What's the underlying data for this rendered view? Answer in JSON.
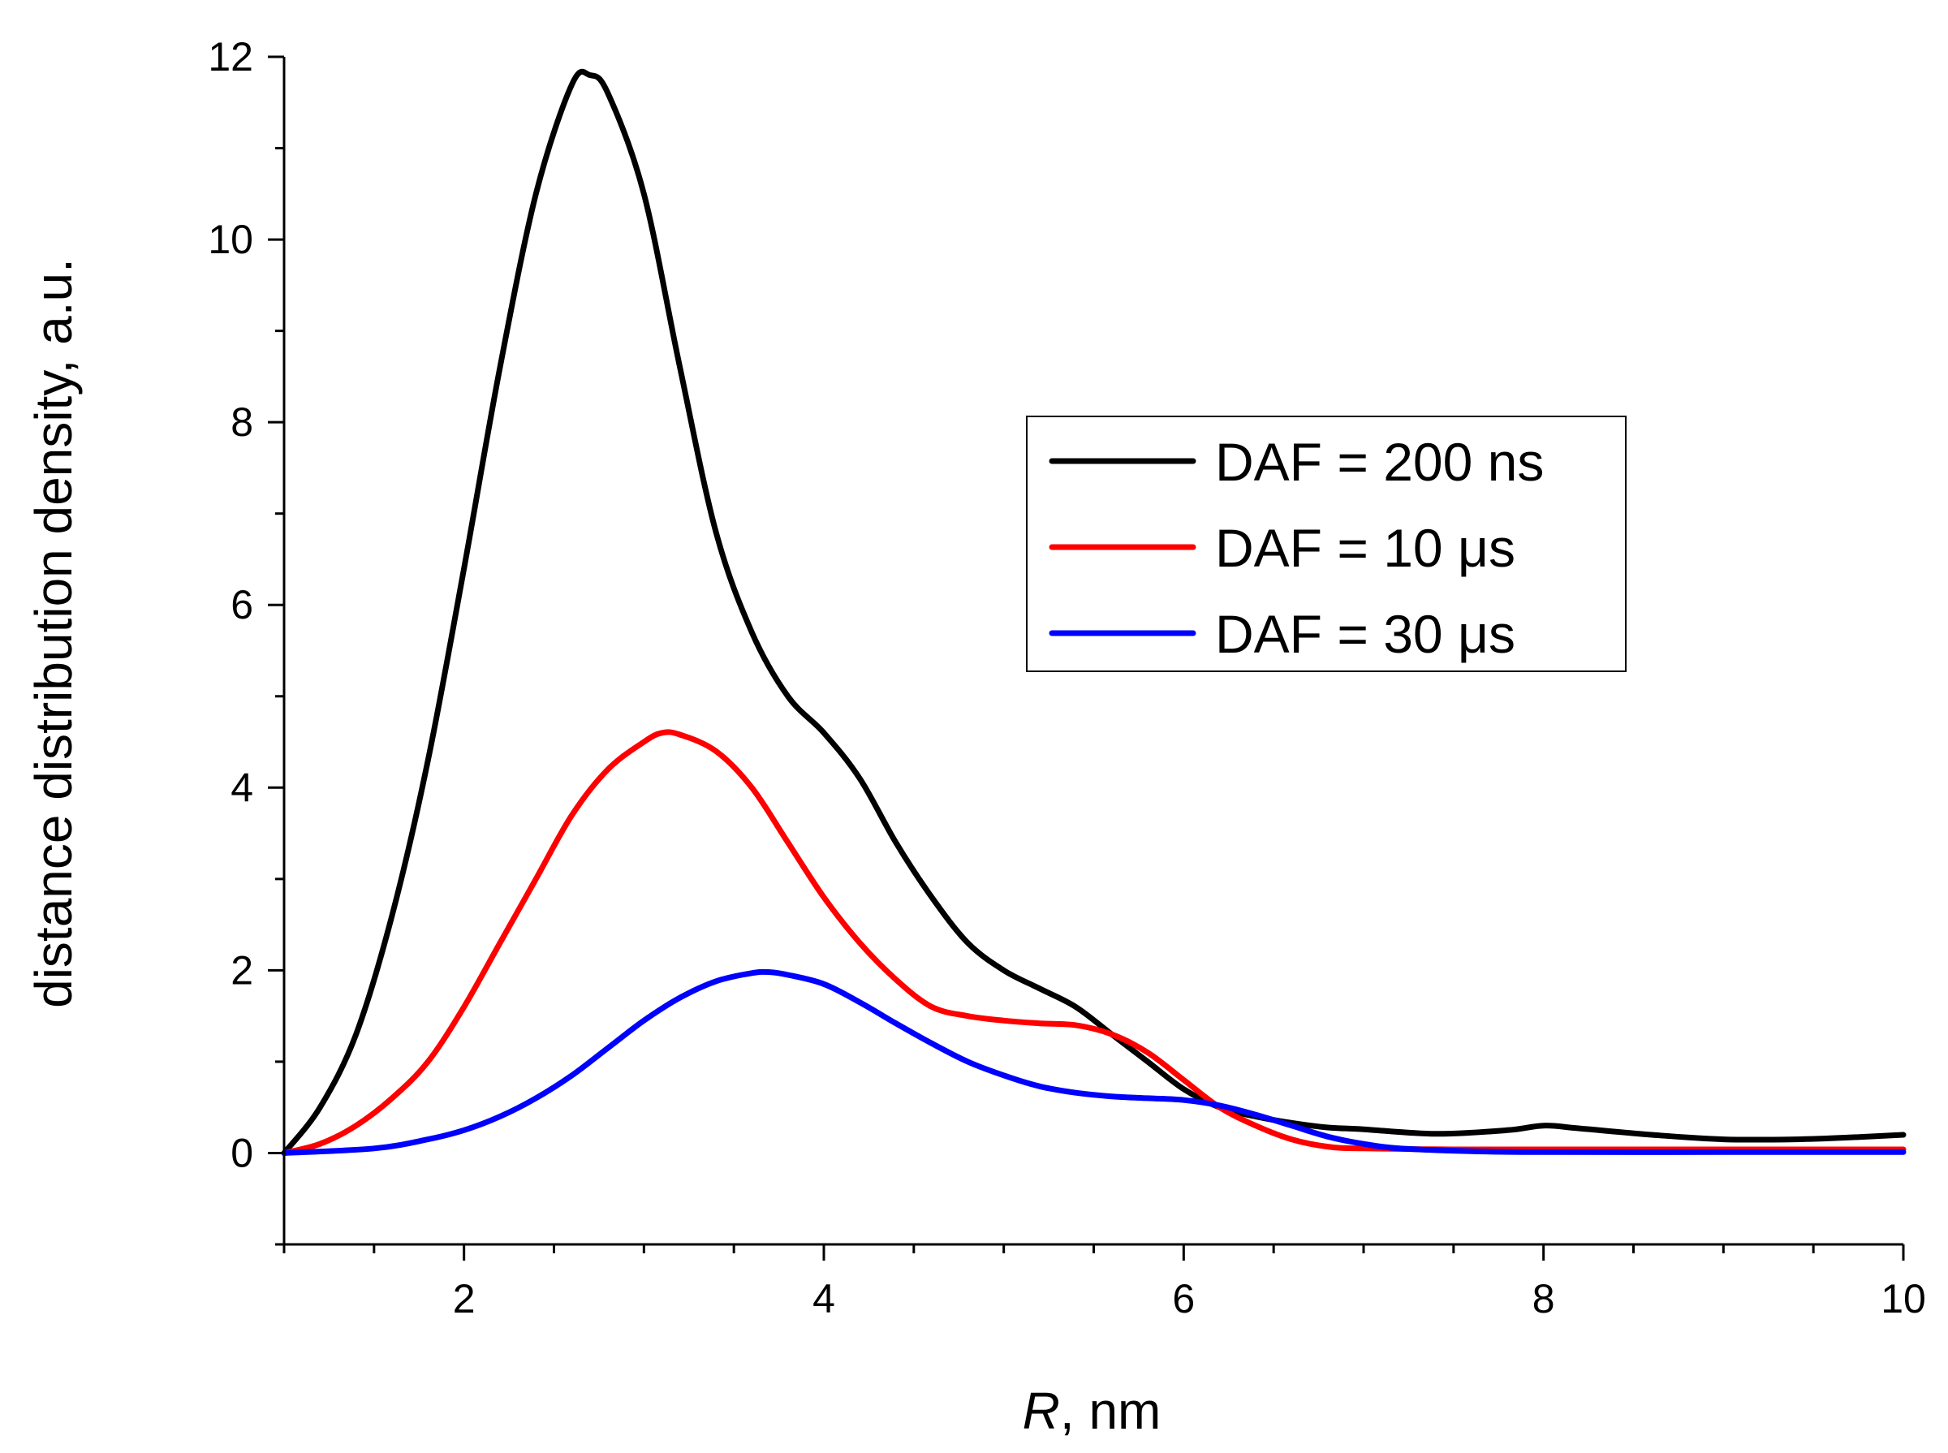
{
  "chart_data": {
    "type": "line",
    "title": "",
    "xlabel_italic": "R",
    "xlabel_rest": ", nm",
    "ylabel": "distance distribution density, a.u.",
    "xlim": [
      1,
      10
    ],
    "ylim": [
      -1,
      12
    ],
    "xticks": [
      2,
      4,
      6,
      8,
      10
    ],
    "yticks": [
      0,
      2,
      4,
      6,
      8,
      10,
      12
    ],
    "xminor": [
      1,
      1.5,
      2.5,
      3,
      3.5,
      4.5,
      5,
      5.5,
      6.5,
      7,
      7.5,
      8.5,
      9,
      9.5
    ],
    "yminor": [
      -1,
      1,
      3,
      5,
      7,
      9,
      11
    ],
    "grid": false,
    "legend_position": "center-right",
    "series": [
      {
        "name": "DAF = 200 ns",
        "color": "#000000",
        "points": [
          [
            1.0,
            0.0
          ],
          [
            1.2,
            0.5
          ],
          [
            1.4,
            1.3
          ],
          [
            1.6,
            2.6
          ],
          [
            1.8,
            4.3
          ],
          [
            2.0,
            6.4
          ],
          [
            2.2,
            8.6
          ],
          [
            2.4,
            10.5
          ],
          [
            2.6,
            11.7
          ],
          [
            2.7,
            11.8
          ],
          [
            2.8,
            11.6
          ],
          [
            3.0,
            10.5
          ],
          [
            3.2,
            8.6
          ],
          [
            3.4,
            6.8
          ],
          [
            3.6,
            5.7
          ],
          [
            3.8,
            5.0
          ],
          [
            4.0,
            4.6
          ],
          [
            4.2,
            4.1
          ],
          [
            4.4,
            3.4
          ],
          [
            4.6,
            2.8
          ],
          [
            4.8,
            2.3
          ],
          [
            5.0,
            2.0
          ],
          [
            5.2,
            1.8
          ],
          [
            5.4,
            1.6
          ],
          [
            5.6,
            1.3
          ],
          [
            5.8,
            1.0
          ],
          [
            6.0,
            0.7
          ],
          [
            6.2,
            0.5
          ],
          [
            6.4,
            0.4
          ],
          [
            6.6,
            0.33
          ],
          [
            6.8,
            0.28
          ],
          [
            7.0,
            0.26
          ],
          [
            7.4,
            0.21
          ],
          [
            7.8,
            0.25
          ],
          [
            8.0,
            0.3
          ],
          [
            8.2,
            0.27
          ],
          [
            8.6,
            0.2
          ],
          [
            9.0,
            0.15
          ],
          [
            9.4,
            0.15
          ],
          [
            9.7,
            0.17
          ],
          [
            10.0,
            0.2
          ]
        ]
      },
      {
        "name": "DAF = 10 μs",
        "color": "#ff0000",
        "points": [
          [
            1.0,
            0.0
          ],
          [
            1.2,
            0.1
          ],
          [
            1.4,
            0.3
          ],
          [
            1.6,
            0.6
          ],
          [
            1.8,
            1.0
          ],
          [
            2.0,
            1.6
          ],
          [
            2.2,
            2.3
          ],
          [
            2.4,
            3.0
          ],
          [
            2.6,
            3.7
          ],
          [
            2.8,
            4.2
          ],
          [
            3.0,
            4.5
          ],
          [
            3.1,
            4.6
          ],
          [
            3.2,
            4.58
          ],
          [
            3.4,
            4.4
          ],
          [
            3.6,
            4.0
          ],
          [
            3.8,
            3.4
          ],
          [
            4.0,
            2.8
          ],
          [
            4.2,
            2.3
          ],
          [
            4.4,
            1.9
          ],
          [
            4.6,
            1.6
          ],
          [
            4.8,
            1.5
          ],
          [
            5.0,
            1.45
          ],
          [
            5.2,
            1.42
          ],
          [
            5.4,
            1.4
          ],
          [
            5.6,
            1.3
          ],
          [
            5.8,
            1.1
          ],
          [
            6.0,
            0.8
          ],
          [
            6.2,
            0.5
          ],
          [
            6.4,
            0.3
          ],
          [
            6.6,
            0.15
          ],
          [
            6.8,
            0.07
          ],
          [
            7.0,
            0.05
          ],
          [
            7.5,
            0.04
          ],
          [
            8.0,
            0.04
          ],
          [
            9.0,
            0.04
          ],
          [
            10.0,
            0.04
          ]
        ]
      },
      {
        "name": "DAF = 30 μs",
        "color": "#0000ff",
        "points": [
          [
            1.0,
            0.0
          ],
          [
            1.5,
            0.05
          ],
          [
            1.8,
            0.15
          ],
          [
            2.0,
            0.25
          ],
          [
            2.2,
            0.4
          ],
          [
            2.4,
            0.6
          ],
          [
            2.6,
            0.85
          ],
          [
            2.8,
            1.15
          ],
          [
            3.0,
            1.45
          ],
          [
            3.2,
            1.7
          ],
          [
            3.4,
            1.88
          ],
          [
            3.6,
            1.97
          ],
          [
            3.7,
            1.98
          ],
          [
            3.8,
            1.95
          ],
          [
            4.0,
            1.85
          ],
          [
            4.2,
            1.65
          ],
          [
            4.4,
            1.42
          ],
          [
            4.6,
            1.2
          ],
          [
            4.8,
            1.0
          ],
          [
            5.0,
            0.85
          ],
          [
            5.2,
            0.73
          ],
          [
            5.4,
            0.66
          ],
          [
            5.6,
            0.62
          ],
          [
            5.8,
            0.6
          ],
          [
            6.0,
            0.58
          ],
          [
            6.2,
            0.52
          ],
          [
            6.4,
            0.42
          ],
          [
            6.6,
            0.3
          ],
          [
            6.8,
            0.18
          ],
          [
            7.0,
            0.1
          ],
          [
            7.2,
            0.05
          ],
          [
            7.6,
            0.02
          ],
          [
            8.0,
            0.01
          ],
          [
            9.0,
            0.01
          ],
          [
            10.0,
            0.01
          ]
        ]
      }
    ]
  }
}
